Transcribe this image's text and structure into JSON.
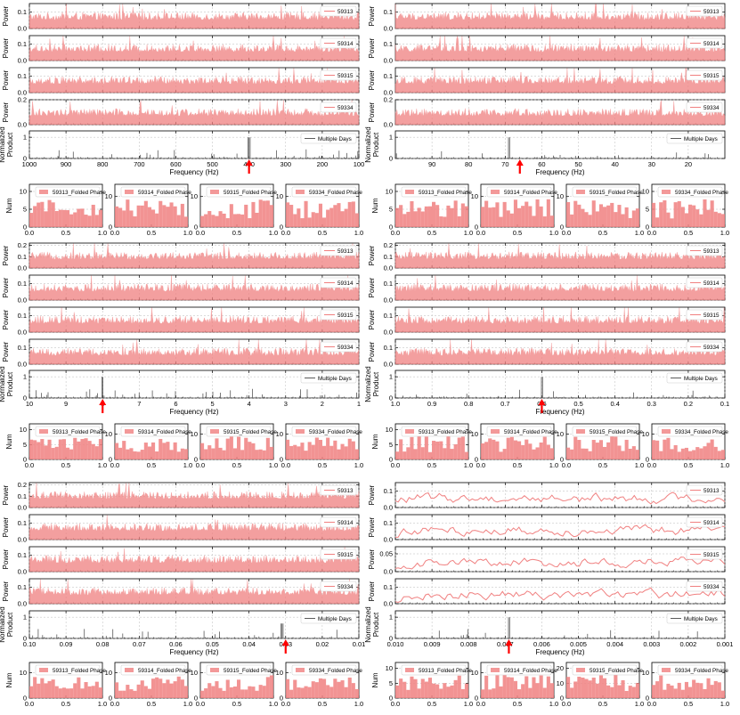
{
  "colors": {
    "series": "#f08080",
    "product": "#5a5a5a",
    "arrow": "#ff0000",
    "grid": "#bbbbbb"
  },
  "labels": {
    "power": "Power",
    "num": "Num",
    "product": [
      "Normalized",
      "Product"
    ],
    "xlabels": [
      "Frequency (Hz)",
      "Frequency (Hz)",
      "Frequency (Hz)",
      "Frequency (Hz)",
      "Frequency (Hz)",
      "Frequency (Hz)"
    ],
    "multiple_days": "Multiple Days"
  },
  "chart_data": [
    {
      "type": "line",
      "panel": "top-left",
      "days": [
        "59313",
        "59314",
        "59315",
        "59334"
      ],
      "power_ylim": [
        [
          0,
          0.15
        ],
        [
          0,
          0.15
        ],
        [
          0,
          0.15
        ],
        [
          0,
          0.2
        ]
      ],
      "power_yticks": [
        [
          0.0,
          0.1
        ],
        [
          0.0,
          0.1
        ],
        [
          0.0,
          0.1
        ],
        [
          0.0,
          0.2
        ]
      ],
      "xlim": [
        1000,
        100
      ],
      "xticks": [
        1000,
        900,
        800,
        700,
        600,
        500,
        400,
        300,
        200,
        100
      ],
      "xlabel": "Frequency (Hz)",
      "product": {
        "legend": "Multiple Days",
        "ylim": [
          0,
          1.3
        ],
        "yticks": [
          0,
          1
        ],
        "peak_x": 400,
        "peak_value": 1.0
      },
      "arrow_x": 400,
      "folded_phase": {
        "legends": [
          "59313_Folded Phase",
          "59314_Folded Phase",
          "59315_Folded Phase",
          "59334_Folded Phase"
        ],
        "ylabel": "Num",
        "xticks": [
          0.0,
          0.5,
          1.0
        ],
        "yticks": [
          [
            0,
            5,
            10
          ],
          [
            0,
            10
          ],
          [
            0,
            10
          ],
          [
            0,
            10
          ]
        ],
        "ylim": [
          [
            0,
            12
          ],
          [
            0,
            14
          ],
          [
            0,
            14
          ],
          [
            0,
            14
          ]
        ]
      }
    },
    {
      "type": "line",
      "panel": "top-right",
      "days": [
        "59313",
        "59314",
        "59315",
        "59334"
      ],
      "power_ylim": [
        [
          0,
          0.15
        ],
        [
          0,
          0.15
        ],
        [
          0,
          0.15
        ],
        [
          0,
          0.2
        ]
      ],
      "power_yticks": [
        [
          0.0,
          0.1
        ],
        [
          0.0,
          0.1
        ],
        [
          0.0,
          0.1
        ],
        [
          0.0,
          0.2
        ]
      ],
      "xlim": [
        100,
        10
      ],
      "xticks": [
        90,
        80,
        70,
        60,
        50,
        40,
        30,
        20
      ],
      "xlabel": "Frequency (Hz)",
      "product": {
        "legend": "Multiple Days",
        "ylim": [
          0,
          1.3
        ],
        "yticks": [
          0,
          1
        ],
        "peak_x": 69,
        "peak_value": 1.0
      },
      "arrow_x": 66,
      "folded_phase": {
        "legends": [
          "59313_Folded Phase",
          "59314_Folded Phase",
          "59315_Folded Phase",
          "59334_Folded Phase"
        ],
        "ylabel": "Num",
        "xticks": [
          0.0,
          0.5,
          1.0
        ],
        "yticks": [
          [
            0,
            5,
            10
          ],
          [
            0,
            10
          ],
          [
            0,
            10
          ],
          [
            0,
            5,
            10
          ]
        ],
        "ylim": [
          [
            0,
            12
          ],
          [
            0,
            14
          ],
          [
            0,
            14
          ],
          [
            0,
            12
          ]
        ]
      }
    },
    {
      "type": "line",
      "panel": "middle-left",
      "days": [
        "59313",
        "59314",
        "59315",
        "59334"
      ],
      "power_ylim": [
        [
          0,
          0.22
        ],
        [
          0,
          0.15
        ],
        [
          0,
          0.15
        ],
        [
          0,
          0.15
        ]
      ],
      "power_yticks": [
        [
          0.0,
          0.1,
          0.2
        ],
        [
          0.0,
          0.1
        ],
        [
          0.0,
          0.1
        ],
        [
          0.0,
          0.1
        ]
      ],
      "xlim": [
        10,
        1
      ],
      "xticks": [
        10,
        9,
        8,
        7,
        6,
        5,
        4,
        3,
        2,
        1
      ],
      "xlabel": "Frequency (Hz)",
      "product": {
        "legend": "Multiple Days",
        "ylim": [
          0,
          1.3
        ],
        "yticks": [
          0,
          1
        ],
        "peak_x": 8,
        "peak_value": 1.0
      },
      "arrow_x": 8,
      "folded_phase": {
        "legends": [
          "59313_Folded Phase",
          "59314_Folded Phase",
          "59315_Folded Phase",
          "59334_Folded Phase"
        ],
        "ylabel": "Num",
        "xticks": [
          0.0,
          0.5,
          1.0
        ],
        "yticks": [
          [
            0,
            5,
            10
          ],
          [
            0,
            10
          ],
          [
            0,
            10
          ],
          [
            0,
            10
          ]
        ],
        "ylim": [
          [
            0,
            12
          ],
          [
            0,
            14
          ],
          [
            0,
            14
          ],
          [
            0,
            14
          ]
        ]
      }
    },
    {
      "type": "line",
      "panel": "middle-right",
      "days": [
        "59313",
        "59314",
        "59315",
        "59334"
      ],
      "power_ylim": [
        [
          0,
          0.22
        ],
        [
          0,
          0.15
        ],
        [
          0,
          0.15
        ],
        [
          0,
          0.15
        ]
      ],
      "power_yticks": [
        [
          0.0,
          0.1,
          0.2
        ],
        [
          0.0,
          0.1
        ],
        [
          0.0,
          0.1
        ],
        [
          0.0,
          0.1
        ]
      ],
      "xlim": [
        1.0,
        0.1
      ],
      "xticks": [
        1.0,
        0.9,
        0.8,
        0.7,
        0.6,
        0.5,
        0.4,
        0.3,
        0.2,
        0.1
      ],
      "xlabel": "Frequency (Hz)",
      "product": {
        "legend": "Multiple Days",
        "ylim": [
          0,
          1.3
        ],
        "yticks": [
          0,
          1
        ],
        "peak_x": 0.6,
        "peak_value": 1.0
      },
      "arrow_x": 0.6,
      "folded_phase": {
        "legends": [
          "59313_Folded Phase",
          "59314_Folded Phase",
          "59315_Folded Phase",
          "59334_Folded Phase"
        ],
        "ylabel": "Num",
        "xticks": [
          0.0,
          0.5,
          1.0
        ],
        "yticks": [
          [
            0,
            5,
            10
          ],
          [
            0,
            10
          ],
          [
            0,
            10
          ],
          [
            0,
            10
          ]
        ],
        "ylim": [
          [
            0,
            12
          ],
          [
            0,
            14
          ],
          [
            0,
            14
          ],
          [
            0,
            14
          ]
        ]
      }
    },
    {
      "type": "line",
      "panel": "bottom-left",
      "days": [
        "59313",
        "59314",
        "59315",
        "59334"
      ],
      "power_ylim": [
        [
          0,
          0.22
        ],
        [
          0,
          0.15
        ],
        [
          0,
          0.15
        ],
        [
          0,
          0.15
        ]
      ],
      "power_yticks": [
        [
          0.0,
          0.1,
          0.2
        ],
        [
          0.0,
          0.1
        ],
        [
          0.0,
          0.1
        ],
        [
          0.0,
          0.1
        ]
      ],
      "xlim": [
        0.1,
        0.01
      ],
      "xticks": [
        0.1,
        0.09,
        0.08,
        0.07,
        0.06,
        0.05,
        0.04,
        0.03,
        0.02,
        0.01
      ],
      "xlabel": "Frequency (Hz)",
      "product": {
        "legend": "Multiple Days",
        "ylim": [
          0,
          1.3
        ],
        "yticks": [
          0,
          1
        ],
        "peak_x": 0.031,
        "peak_value": 0.7
      },
      "arrow_x": 0.03,
      "folded_phase": {
        "legends": [
          "59313_Folded Phase",
          "59314_Folded Phase",
          "59315_Folded Phase",
          "59334_Folded Phase"
        ],
        "ylabel": "Num",
        "xticks": [
          0.0,
          0.5,
          1.0
        ],
        "yticks": [
          [
            0,
            10
          ],
          [
            0,
            10
          ],
          [
            0,
            10
          ],
          [
            0,
            10
          ]
        ],
        "ylim": [
          [
            0,
            14
          ],
          [
            0,
            14
          ],
          [
            0,
            14
          ],
          [
            0,
            14
          ]
        ]
      }
    },
    {
      "type": "line",
      "panel": "bottom-right",
      "days": [
        "59313",
        "59314",
        "59315",
        "59334"
      ],
      "power_ylim": [
        [
          0,
          0.15
        ],
        [
          0,
          0.15
        ],
        [
          0,
          0.07
        ],
        [
          0,
          0.15
        ]
      ],
      "power_yticks": [
        [
          0.0,
          0.1
        ],
        [
          0.0,
          0.1
        ],
        [
          0.0,
          0.05
        ],
        [
          0.0,
          0.1
        ]
      ],
      "xlim": [
        0.01,
        0.001
      ],
      "xticks": [
        0.01,
        0.009,
        0.008,
        0.007,
        0.006,
        0.005,
        0.004,
        0.003,
        0.002,
        0.001
      ],
      "xlabel": "Frequency (Hz)",
      "product": {
        "legend": "Multiple Days",
        "ylim": [
          0,
          1.3
        ],
        "yticks": [
          0,
          1
        ],
        "peak_x": 0.0069,
        "peak_value": 1.0
      },
      "arrow_x": 0.0069,
      "smooth": true,
      "folded_phase": {
        "legends": [
          "59313_Folded Phase",
          "59314_Folded Phase",
          "59315_Folded Phase",
          "59334_Folded Phase"
        ],
        "ylabel": "Num",
        "xticks": [
          0.0,
          0.5,
          1.0
        ],
        "yticks": [
          [
            0,
            5,
            10
          ],
          [
            0,
            10
          ],
          [
            0,
            10,
            20
          ],
          [
            0,
            10
          ]
        ],
        "ylim": [
          [
            0,
            12
          ],
          [
            0,
            14
          ],
          [
            0,
            24
          ],
          [
            0,
            14
          ]
        ]
      }
    }
  ]
}
